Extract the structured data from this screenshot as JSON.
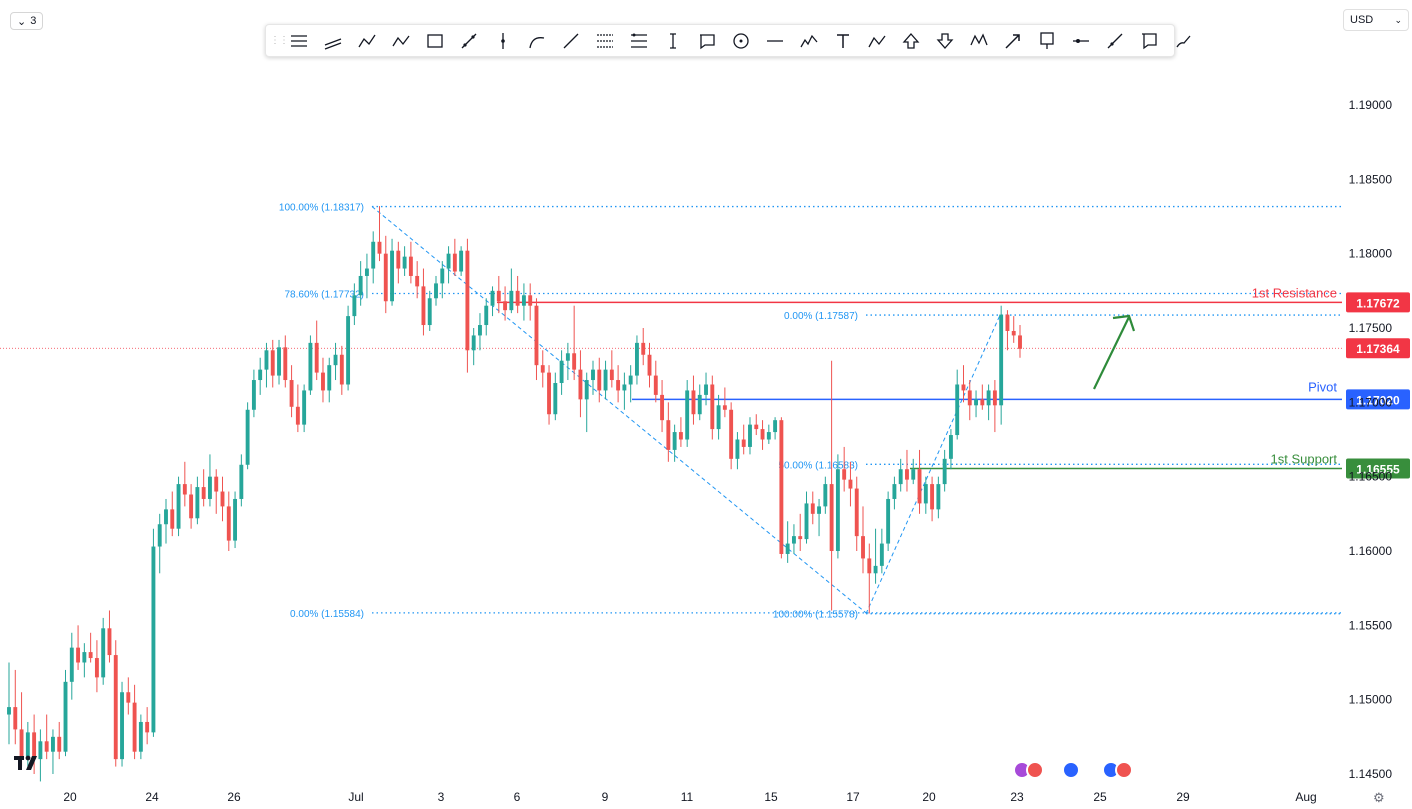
{
  "toolbar": {
    "interval_label": "3",
    "currency_label": "USD",
    "tools": [
      "horizontal-lines-icon",
      "parallel-channel-icon",
      "pitchfork-icon",
      "zigzag-icon",
      "rectangle-icon",
      "trend-angle-icon",
      "vertical-line-icon",
      "arc-icon",
      "trend-line-icon",
      "fib-retracement-icon",
      "fib-extension-icon",
      "date-range-icon",
      "callout-icon",
      "circle-icon",
      "horizontal-line-icon",
      "elliott-wave-icon",
      "text-icon",
      "abc-pattern-icon",
      "arrow-up-icon",
      "arrow-down-icon",
      "xabcd-pattern-icon",
      "arrow-icon",
      "price-label-icon",
      "horizontal-ray-icon",
      "ray-icon",
      "note-icon",
      "brush-icon"
    ]
  },
  "colors": {
    "up": "#26a69a",
    "down": "#ef5350",
    "fib": "#2196f3",
    "resistance": "#f23645",
    "pivot": "#2962ff",
    "support": "#388e3c",
    "current": "#f23645",
    "arrow": "#2e8b3a"
  },
  "chart_data": {
    "type": "candlestick",
    "x_ticks": [
      "20",
      "24",
      "26",
      "Jul",
      "3",
      "6",
      "9",
      "11",
      "15",
      "17",
      "20",
      "23",
      "25",
      "29",
      "Aug"
    ],
    "y_ticks": [
      "1.19000",
      "1.18500",
      "1.18000",
      "1.17500",
      "1.17000",
      "1.16500",
      "1.16000",
      "1.15500",
      "1.15000",
      "1.14500"
    ],
    "ylim": [
      1.1437,
      1.1925
    ],
    "levels": {
      "resistance": {
        "label": "1st Resistance",
        "value": 1.17672,
        "price": "1.17672"
      },
      "pivot": {
        "label": "Pivot",
        "value": 1.1702,
        "price": "1.17020"
      },
      "support": {
        "label": "1st Support",
        "value": 1.16555,
        "price": "1.16555"
      },
      "current": {
        "value": 1.17364,
        "price": "1.17364"
      }
    },
    "fib_down": [
      {
        "label": "100.00% (1.18317)",
        "value": 1.18317
      },
      {
        "label": "78.60% (1.17732)",
        "value": 1.17732
      },
      {
        "label": "0.00% (1.15584)",
        "value": 1.15584
      }
    ],
    "fib_up": [
      {
        "label": "0.00% (1.17587)",
        "value": 1.17587
      },
      {
        "label": "50.00% (1.16583)",
        "value": 1.16583
      },
      {
        "label": "100.00% (1.15578)",
        "value": 1.15578
      }
    ],
    "candles": [
      [
        1.149,
        1.1525,
        1.147,
        1.1495
      ],
      [
        1.1495,
        1.152,
        1.147,
        1.148
      ],
      [
        1.148,
        1.1505,
        1.1455,
        1.1462
      ],
      [
        1.1462,
        1.1485,
        1.1455,
        1.1478
      ],
      [
        1.1478,
        1.149,
        1.145,
        1.146
      ],
      [
        1.146,
        1.148,
        1.1445,
        1.1472
      ],
      [
        1.1472,
        1.149,
        1.146,
        1.1465
      ],
      [
        1.1465,
        1.148,
        1.145,
        1.1475
      ],
      [
        1.1475,
        1.1485,
        1.146,
        1.1465
      ],
      [
        1.1465,
        1.152,
        1.1462,
        1.1512
      ],
      [
        1.1512,
        1.1545,
        1.15,
        1.1535
      ],
      [
        1.1535,
        1.155,
        1.152,
        1.1525
      ],
      [
        1.1525,
        1.1538,
        1.1515,
        1.1532
      ],
      [
        1.1532,
        1.1545,
        1.1525,
        1.1528
      ],
      [
        1.1528,
        1.154,
        1.1505,
        1.1515
      ],
      [
        1.1515,
        1.1555,
        1.151,
        1.1548
      ],
      [
        1.1548,
        1.156,
        1.1525,
        1.153
      ],
      [
        1.153,
        1.154,
        1.1455,
        1.146
      ],
      [
        1.146,
        1.1512,
        1.1455,
        1.1505
      ],
      [
        1.1505,
        1.1515,
        1.149,
        1.1498
      ],
      [
        1.1498,
        1.151,
        1.146,
        1.1465
      ],
      [
        1.1465,
        1.149,
        1.146,
        1.1485
      ],
      [
        1.1485,
        1.1495,
        1.147,
        1.1478
      ],
      [
        1.1478,
        1.1615,
        1.1475,
        1.1603
      ],
      [
        1.1603,
        1.1625,
        1.1585,
        1.1618
      ],
      [
        1.1618,
        1.1635,
        1.1605,
        1.1628
      ],
      [
        1.1628,
        1.164,
        1.161,
        1.1615
      ],
      [
        1.1615,
        1.165,
        1.161,
        1.1645
      ],
      [
        1.1645,
        1.166,
        1.163,
        1.1638
      ],
      [
        1.1638,
        1.1645,
        1.1615,
        1.1622
      ],
      [
        1.1622,
        1.165,
        1.1618,
        1.1643
      ],
      [
        1.1643,
        1.1655,
        1.163,
        1.1635
      ],
      [
        1.1635,
        1.1665,
        1.163,
        1.165
      ],
      [
        1.165,
        1.1655,
        1.1625,
        1.164
      ],
      [
        1.164,
        1.165,
        1.162,
        1.163
      ],
      [
        1.163,
        1.164,
        1.16,
        1.1607
      ],
      [
        1.1607,
        1.164,
        1.1602,
        1.1635
      ],
      [
        1.1635,
        1.1665,
        1.163,
        1.1658
      ],
      [
        1.1658,
        1.17,
        1.1655,
        1.1695
      ],
      [
        1.1695,
        1.1722,
        1.169,
        1.1715
      ],
      [
        1.1715,
        1.173,
        1.1705,
        1.1722
      ],
      [
        1.1722,
        1.174,
        1.171,
        1.1735
      ],
      [
        1.1735,
        1.1742,
        1.171,
        1.1718
      ],
      [
        1.1718,
        1.1742,
        1.1712,
        1.1737
      ],
      [
        1.1737,
        1.1745,
        1.171,
        1.1715
      ],
      [
        1.1715,
        1.1725,
        1.169,
        1.1697
      ],
      [
        1.1697,
        1.1712,
        1.168,
        1.1685
      ],
      [
        1.1685,
        1.1712,
        1.168,
        1.1708
      ],
      [
        1.1708,
        1.1745,
        1.1705,
        1.174
      ],
      [
        1.174,
        1.1755,
        1.1715,
        1.172
      ],
      [
        1.172,
        1.173,
        1.17,
        1.1708
      ],
      [
        1.1708,
        1.173,
        1.17,
        1.1725
      ],
      [
        1.1725,
        1.174,
        1.1715,
        1.1732
      ],
      [
        1.1732,
        1.1738,
        1.1705,
        1.1712
      ],
      [
        1.1712,
        1.1765,
        1.1708,
        1.1758
      ],
      [
        1.1758,
        1.178,
        1.1752,
        1.1772
      ],
      [
        1.1772,
        1.1795,
        1.1765,
        1.1785
      ],
      [
        1.1785,
        1.18,
        1.177,
        1.179
      ],
      [
        1.179,
        1.1815,
        1.178,
        1.1808
      ],
      [
        1.1808,
        1.1832,
        1.1795,
        1.18
      ],
      [
        1.18,
        1.1812,
        1.176,
        1.1768
      ],
      [
        1.1768,
        1.181,
        1.1765,
        1.1802
      ],
      [
        1.1802,
        1.1808,
        1.178,
        1.179
      ],
      [
        1.179,
        1.1805,
        1.1785,
        1.1798
      ],
      [
        1.1798,
        1.1808,
        1.178,
        1.1785
      ],
      [
        1.1785,
        1.1795,
        1.177,
        1.1778
      ],
      [
        1.1778,
        1.179,
        1.1745,
        1.1752
      ],
      [
        1.1752,
        1.1775,
        1.1748,
        1.177
      ],
      [
        1.177,
        1.1785,
        1.1765,
        1.178
      ],
      [
        1.178,
        1.1795,
        1.177,
        1.179
      ],
      [
        1.179,
        1.1805,
        1.178,
        1.18
      ],
      [
        1.18,
        1.181,
        1.1785,
        1.1788
      ],
      [
        1.1788,
        1.1805,
        1.1785,
        1.1802
      ],
      [
        1.1802,
        1.181,
        1.172,
        1.1735
      ],
      [
        1.1735,
        1.175,
        1.1725,
        1.1745
      ],
      [
        1.1745,
        1.176,
        1.1735,
        1.1752
      ],
      [
        1.1752,
        1.177,
        1.1745,
        1.1765
      ],
      [
        1.1765,
        1.1778,
        1.1758,
        1.1775
      ],
      [
        1.1775,
        1.1785,
        1.176,
        1.1768
      ],
      [
        1.1768,
        1.1778,
        1.1755,
        1.1762
      ],
      [
        1.1762,
        1.179,
        1.176,
        1.1775
      ],
      [
        1.1775,
        1.1785,
        1.176,
        1.1765
      ],
      [
        1.1765,
        1.178,
        1.1755,
        1.1772
      ],
      [
        1.1772,
        1.178,
        1.1755,
        1.1765
      ],
      [
        1.1765,
        1.177,
        1.1715,
        1.1725
      ],
      [
        1.1725,
        1.1735,
        1.171,
        1.172
      ],
      [
        1.172,
        1.1725,
        1.1685,
        1.1692
      ],
      [
        1.1692,
        1.172,
        1.1688,
        1.1713
      ],
      [
        1.1713,
        1.1735,
        1.1705,
        1.1728
      ],
      [
        1.1728,
        1.174,
        1.1715,
        1.1733
      ],
      [
        1.1733,
        1.1765,
        1.1715,
        1.1722
      ],
      [
        1.1722,
        1.1735,
        1.169,
        1.1702
      ],
      [
        1.1702,
        1.172,
        1.168,
        1.1715
      ],
      [
        1.1715,
        1.1728,
        1.1705,
        1.1722
      ],
      [
        1.1722,
        1.173,
        1.17,
        1.1708
      ],
      [
        1.1708,
        1.1728,
        1.1702,
        1.1722
      ],
      [
        1.1722,
        1.1735,
        1.171,
        1.1715
      ],
      [
        1.1715,
        1.1725,
        1.17,
        1.1708
      ],
      [
        1.1708,
        1.172,
        1.1695,
        1.1712
      ],
      [
        1.1712,
        1.1725,
        1.17,
        1.1718
      ],
      [
        1.1718,
        1.1745,
        1.1712,
        1.174
      ],
      [
        1.174,
        1.175,
        1.1725,
        1.1732
      ],
      [
        1.1732,
        1.174,
        1.171,
        1.1718
      ],
      [
        1.1718,
        1.1728,
        1.17,
        1.1705
      ],
      [
        1.1705,
        1.1715,
        1.168,
        1.1688
      ],
      [
        1.1688,
        1.17,
        1.166,
        1.1668
      ],
      [
        1.1668,
        1.1685,
        1.166,
        1.168
      ],
      [
        1.168,
        1.169,
        1.167,
        1.1675
      ],
      [
        1.1675,
        1.1715,
        1.167,
        1.1708
      ],
      [
        1.1708,
        1.1718,
        1.1685,
        1.1692
      ],
      [
        1.1692,
        1.1712,
        1.1688,
        1.1705
      ],
      [
        1.1705,
        1.172,
        1.1698,
        1.1712
      ],
      [
        1.1712,
        1.1718,
        1.1675,
        1.1682
      ],
      [
        1.1682,
        1.1705,
        1.1675,
        1.1698
      ],
      [
        1.1698,
        1.171,
        1.169,
        1.1695
      ],
      [
        1.1695,
        1.17,
        1.1655,
        1.1662
      ],
      [
        1.1662,
        1.168,
        1.1655,
        1.1675
      ],
      [
        1.1675,
        1.1685,
        1.1665,
        1.167
      ],
      [
        1.167,
        1.169,
        1.1665,
        1.1685
      ],
      [
        1.1685,
        1.1692,
        1.1678,
        1.1682
      ],
      [
        1.1682,
        1.1688,
        1.1668,
        1.1675
      ],
      [
        1.1675,
        1.1685,
        1.1672,
        1.168
      ],
      [
        1.168,
        1.169,
        1.1675,
        1.1688
      ],
      [
        1.1688,
        1.169,
        1.1595,
        1.1598
      ],
      [
        1.1598,
        1.162,
        1.1592,
        1.1605
      ],
      [
        1.1605,
        1.1618,
        1.1598,
        1.161
      ],
      [
        1.161,
        1.1625,
        1.16,
        1.1608
      ],
      [
        1.1608,
        1.164,
        1.1605,
        1.1632
      ],
      [
        1.1632,
        1.164,
        1.1618,
        1.1625
      ],
      [
        1.1625,
        1.1635,
        1.161,
        1.163
      ],
      [
        1.163,
        1.165,
        1.1625,
        1.1645
      ],
      [
        1.1645,
        1.1728,
        1.156,
        1.16
      ],
      [
        1.16,
        1.1665,
        1.1595,
        1.1655
      ],
      [
        1.1655,
        1.167,
        1.164,
        1.1648
      ],
      [
        1.1648,
        1.166,
        1.163,
        1.1642
      ],
      [
        1.1642,
        1.165,
        1.16,
        1.161
      ],
      [
        1.161,
        1.163,
        1.1585,
        1.1595
      ],
      [
        1.1595,
        1.1605,
        1.1558,
        1.1585
      ],
      [
        1.1585,
        1.1615,
        1.1578,
        1.159
      ],
      [
        1.159,
        1.1615,
        1.1585,
        1.1605
      ],
      [
        1.1605,
        1.164,
        1.16,
        1.1635
      ],
      [
        1.1635,
        1.165,
        1.1628,
        1.1645
      ],
      [
        1.1645,
        1.1662,
        1.164,
        1.1655
      ],
      [
        1.1655,
        1.1668,
        1.164,
        1.1648
      ],
      [
        1.1648,
        1.1662,
        1.1645,
        1.1655
      ],
      [
        1.1655,
        1.1668,
        1.1625,
        1.1632
      ],
      [
        1.1632,
        1.165,
        1.1625,
        1.1645
      ],
      [
        1.1645,
        1.165,
        1.162,
        1.1628
      ],
      [
        1.1628,
        1.165,
        1.1622,
        1.1645
      ],
      [
        1.1645,
        1.1668,
        1.164,
        1.1662
      ],
      [
        1.1662,
        1.1682,
        1.1655,
        1.1678
      ],
      [
        1.1678,
        1.1722,
        1.1675,
        1.1712
      ],
      [
        1.1712,
        1.1725,
        1.17,
        1.1708
      ],
      [
        1.1708,
        1.1715,
        1.1688,
        1.1698
      ],
      [
        1.1698,
        1.1708,
        1.169,
        1.1702
      ],
      [
        1.1702,
        1.1712,
        1.1695,
        1.1698
      ],
      [
        1.1698,
        1.1712,
        1.1688,
        1.1708
      ],
      [
        1.1708,
        1.1715,
        1.168,
        1.1698
      ],
      [
        1.1698,
        1.1765,
        1.1685,
        1.1759
      ],
      [
        1.1759,
        1.1762,
        1.1735,
        1.1748
      ],
      [
        1.1748,
        1.1758,
        1.174,
        1.1745
      ],
      [
        1.1745,
        1.1752,
        1.173,
        1.1736
      ]
    ]
  }
}
